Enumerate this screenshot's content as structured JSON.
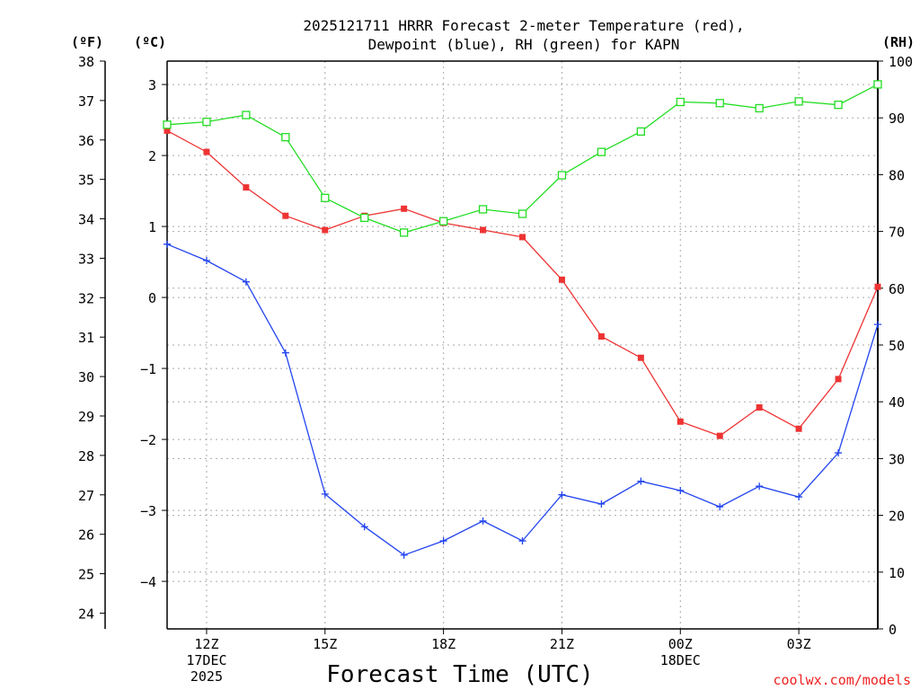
{
  "chart_data": {
    "type": "line",
    "title": [
      "2025121711 HRRR Forecast 2-meter Temperature (red),",
      "Dewpoint (blue), RH (green) for KAPN"
    ],
    "xlabel": "Forecast Time (UTC)",
    "credit": "coolwx.com/models",
    "units": {
      "fahrenheit": "(ºF)",
      "celsius": "(ºC)",
      "rh": "(RH)"
    },
    "x_ticks": [
      {
        "hour": 12,
        "lines": [
          "12Z",
          "17DEC",
          "2025"
        ]
      },
      {
        "hour": 15,
        "lines": [
          "15Z"
        ]
      },
      {
        "hour": 18,
        "lines": [
          "18Z"
        ]
      },
      {
        "hour": 21,
        "lines": [
          "21Z"
        ]
      },
      {
        "hour": 24,
        "lines": [
          "00Z",
          "18DEC"
        ]
      },
      {
        "hour": 27,
        "lines": [
          "03Z"
        ]
      }
    ],
    "xlim": [
      11,
      29
    ],
    "ylim_celsius": [
      -4.67,
      3.33
    ],
    "ylim_fahrenheit": [
      23.6,
      38
    ],
    "ylim_rh": [
      0,
      100
    ],
    "y_ticks_celsius": [
      3,
      2,
      1,
      0,
      -1,
      -2,
      -3,
      -4
    ],
    "y_ticks_fahrenheit": [
      38,
      37,
      36,
      35,
      34,
      33,
      32,
      31,
      30,
      29,
      28,
      27,
      26,
      25,
      24
    ],
    "y_ticks_rh": [
      100,
      90,
      80,
      70,
      60,
      50,
      40,
      30,
      20,
      10,
      0
    ],
    "grid": true,
    "colors": {
      "temperature": "#ee3333",
      "dewpoint": "#2244ee",
      "rh": "#22dd22",
      "grid": "#aaaaaa",
      "credit": "#ee2222"
    },
    "hours": [
      11,
      12,
      13,
      14,
      15,
      16,
      17,
      18,
      19,
      20,
      21,
      22,
      23,
      24,
      25,
      26,
      27,
      28,
      29
    ],
    "series": [
      {
        "name": "Temperature",
        "axis": "celsius",
        "marker": "filled-square",
        "values": [
          2.35,
          2.05,
          1.55,
          1.15,
          0.95,
          1.15,
          1.25,
          1.05,
          0.95,
          0.85,
          0.25,
          -0.55,
          -0.85,
          -1.75,
          -1.95,
          -1.55,
          -1.85,
          -1.15,
          0.15
        ]
      },
      {
        "name": "Dewpoint",
        "axis": "celsius",
        "marker": "plus",
        "values": [
          0.75,
          0.52,
          0.22,
          -0.78,
          -2.77,
          -3.23,
          -3.63,
          -3.43,
          -3.15,
          -3.43,
          -2.78,
          -2.91,
          -2.59,
          -2.72,
          -2.95,
          -2.66,
          -2.81,
          -2.19,
          -0.38
        ]
      },
      {
        "name": "RH",
        "axis": "rh",
        "marker": "open-square",
        "values": [
          88.8,
          89.3,
          90.5,
          86.6,
          75.9,
          72.4,
          69.8,
          71.8,
          73.9,
          73.1,
          79.9,
          84.0,
          87.6,
          92.8,
          92.6,
          91.7,
          92.9,
          92.3,
          95.9
        ]
      }
    ]
  }
}
